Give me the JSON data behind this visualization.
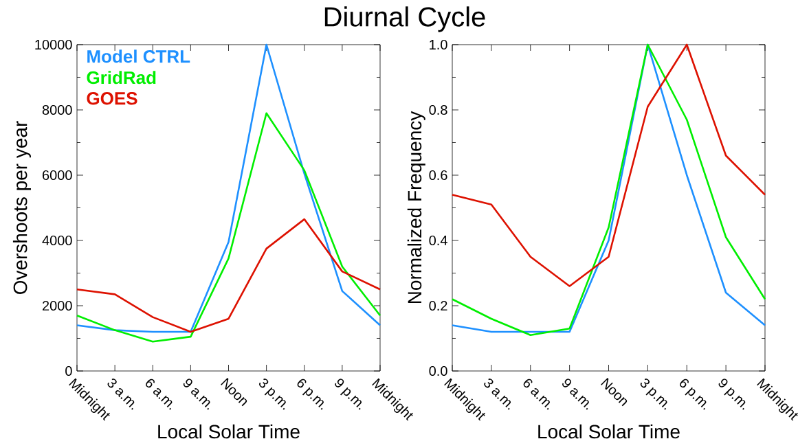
{
  "chart_data": [
    {
      "type": "line",
      "title": "Diurnal Cycle",
      "xlabel": "Local Solar Time",
      "ylabel": "Overshoots per year",
      "categories": [
        "Midnight",
        "3 a.m.",
        "6 a.m.",
        "9 a.m.",
        "Noon",
        "3 p.m.",
        "6 p.m.",
        "9 p.m.",
        "Midnight"
      ],
      "ylim": [
        0,
        10000
      ],
      "yticks": [
        0,
        2000,
        4000,
        6000,
        8000,
        10000
      ],
      "legend": "top left",
      "marker": "none",
      "line_style": "solid",
      "grid": false,
      "series": [
        {
          "name": "Model CTRL",
          "color": "#1e90ff",
          "values": [
            1400,
            1250,
            1200,
            1200,
            3950,
            10000,
            6050,
            2450,
            1400
          ]
        },
        {
          "name": "GridRad",
          "color": "#00ee00",
          "values": [
            1700,
            1250,
            900,
            1050,
            3450,
            7900,
            6150,
            3200,
            1700
          ]
        },
        {
          "name": "GOES",
          "color": "#dd1100",
          "values": [
            2500,
            2350,
            1650,
            1200,
            1600,
            3750,
            4650,
            3050,
            2500
          ]
        }
      ]
    },
    {
      "type": "line",
      "xlabel": "Local Solar Time",
      "ylabel": "Normalized Frequency",
      "categories": [
        "Midnight",
        "3 a.m.",
        "6 a.m.",
        "9 a.m.",
        "Noon",
        "3 p.m.",
        "6 p.m.",
        "9 p.m.",
        "Midnight"
      ],
      "ylim": [
        0,
        1
      ],
      "yticks": [
        {
          "value": 0,
          "label": "0.0"
        },
        {
          "value": 0.2,
          "label": "0.2"
        },
        {
          "value": 0.4,
          "label": "0.4"
        },
        {
          "value": 0.6,
          "label": "0.6"
        },
        {
          "value": 0.8,
          "label": "0.8"
        },
        {
          "value": 1,
          "label": "1.0"
        }
      ],
      "marker": "none",
      "line_style": "solid",
      "grid": false,
      "series": [
        {
          "color": "#1e90ff",
          "values": [
            0.14,
            0.12,
            0.12,
            0.12,
            0.4,
            1.0,
            0.6,
            0.24,
            0.14
          ]
        },
        {
          "color": "#00ee00",
          "values": [
            0.22,
            0.16,
            0.11,
            0.13,
            0.44,
            1.0,
            0.77,
            0.41,
            0.22
          ]
        },
        {
          "color": "#dd1100",
          "values": [
            0.54,
            0.51,
            0.35,
            0.26,
            0.35,
            0.81,
            1.0,
            0.66,
            0.54
          ]
        }
      ]
    }
  ]
}
